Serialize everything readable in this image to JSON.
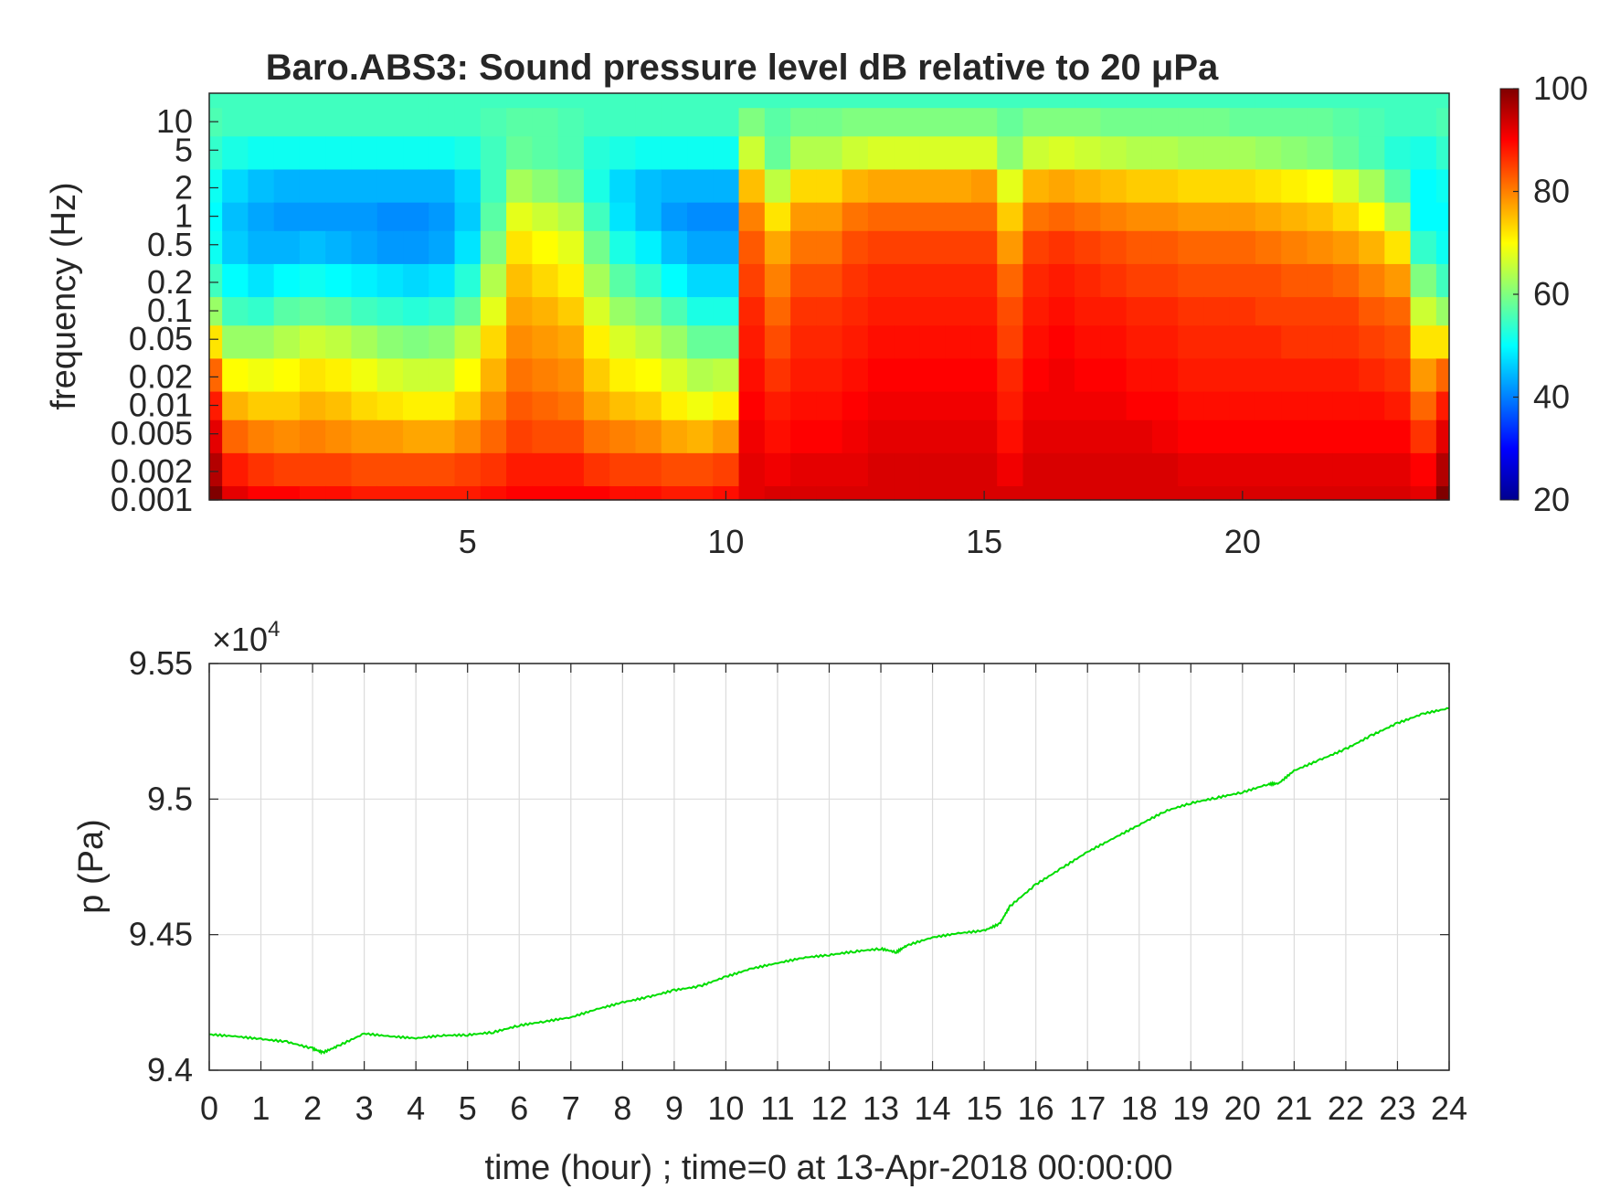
{
  "chart_data": [
    {
      "type": "heatmap",
      "title": "Baro.ABS3: Sound pressure level dB relative to 20 μPa",
      "xlabel": "",
      "ylabel": "frequency (Hz)",
      "x_ticks": [
        5,
        10,
        15,
        20
      ],
      "x_range": [
        0,
        24
      ],
      "y_scale": "log",
      "y_range": [
        0.001,
        20
      ],
      "y_ticks": [
        {
          "value": 0.001,
          "label": "0.001"
        },
        {
          "value": 0.002,
          "label": "0.002"
        },
        {
          "value": 0.005,
          "label": "0.005"
        },
        {
          "value": 0.01,
          "label": "0.01"
        },
        {
          "value": 0.02,
          "label": "0.02"
        },
        {
          "value": 0.05,
          "label": "0.05"
        },
        {
          "value": 0.1,
          "label": "0.1"
        },
        {
          "value": 0.2,
          "label": "0.2"
        },
        {
          "value": 0.5,
          "label": "0.5"
        },
        {
          "value": 1,
          "label": "1"
        },
        {
          "value": 2,
          "label": "2"
        },
        {
          "value": 5,
          "label": "5"
        },
        {
          "value": 10,
          "label": "10"
        }
      ],
      "colormap": "jet",
      "colorbar": {
        "range": [
          20,
          100
        ],
        "ticks": [
          20,
          40,
          60,
          80,
          100
        ]
      },
      "columns_hour": [
        0,
        0.5,
        1,
        1.5,
        2,
        2.5,
        3,
        3.5,
        4,
        4.5,
        5,
        5.5,
        6,
        6.5,
        7,
        7.5,
        8,
        8.5,
        9,
        9.5,
        10,
        10.5,
        11,
        11.5,
        12,
        12.5,
        13,
        13.5,
        14,
        14.5,
        15,
        15.5,
        16,
        16.5,
        17,
        17.5,
        18,
        18.5,
        19,
        19.5,
        20,
        20.5,
        21,
        21.5,
        22,
        22.5,
        23,
        23.5,
        24
      ],
      "rows_freq_hz": [
        0.001,
        0.002,
        0.005,
        0.01,
        0.02,
        0.05,
        0.1,
        0.2,
        0.5,
        1,
        2,
        5,
        10,
        20
      ],
      "values_db": [
        [
          100,
          92,
          90,
          90,
          89,
          89,
          88,
          88,
          88,
          88,
          88,
          89,
          90,
          90,
          90,
          90,
          89,
          89,
          88,
          88,
          89,
          92,
          93,
          93,
          93,
          93,
          93,
          93,
          93,
          93,
          93,
          93,
          93,
          93,
          93,
          93,
          93,
          93,
          93,
          93,
          93,
          93,
          93,
          93,
          93,
          93,
          93,
          92,
          100
        ],
        [
          96,
          88,
          86,
          85,
          85,
          85,
          84,
          84,
          84,
          84,
          85,
          86,
          88,
          88,
          88,
          86,
          85,
          85,
          84,
          84,
          85,
          92,
          91,
          92,
          92,
          92,
          93,
          93,
          93,
          93,
          93,
          91,
          93,
          93,
          93,
          93,
          93,
          93,
          92,
          92,
          92,
          92,
          92,
          92,
          92,
          92,
          92,
          90,
          96
        ],
        [
          92,
          82,
          80,
          79,
          80,
          79,
          78,
          78,
          77,
          77,
          79,
          82,
          85,
          84,
          84,
          81,
          80,
          79,
          77,
          76,
          78,
          91,
          89,
          90,
          90,
          91,
          92,
          92,
          92,
          92,
          92,
          89,
          92,
          92,
          92,
          92,
          92,
          91,
          90,
          90,
          90,
          90,
          90,
          90,
          90,
          90,
          90,
          86,
          92
        ],
        [
          88,
          76,
          74,
          74,
          76,
          75,
          73,
          72,
          71,
          71,
          74,
          79,
          83,
          82,
          81,
          77,
          75,
          74,
          71,
          69,
          71,
          90,
          88,
          89,
          89,
          90,
          91,
          91,
          91,
          91,
          91,
          88,
          91,
          91,
          91,
          91,
          90,
          90,
          89,
          89,
          89,
          89,
          89,
          89,
          89,
          89,
          88,
          82,
          88
        ],
        [
          82,
          70,
          69,
          70,
          72,
          71,
          69,
          67,
          66,
          66,
          70,
          76,
          81,
          80,
          79,
          74,
          71,
          70,
          67,
          64,
          65,
          89,
          86,
          88,
          88,
          89,
          90,
          90,
          90,
          90,
          90,
          87,
          90,
          91,
          90,
          90,
          89,
          89,
          88,
          88,
          88,
          88,
          88,
          88,
          88,
          87,
          86,
          78,
          82
        ],
        [
          72,
          62,
          62,
          64,
          66,
          65,
          63,
          61,
          60,
          61,
          65,
          73,
          79,
          78,
          77,
          71,
          67,
          65,
          62,
          58,
          58,
          88,
          84,
          87,
          87,
          88,
          89,
          89,
          89,
          89,
          89,
          85,
          89,
          90,
          89,
          89,
          88,
          88,
          87,
          87,
          87,
          87,
          86,
          86,
          86,
          85,
          84,
          72,
          72
        ],
        [
          62,
          55,
          54,
          57,
          58,
          57,
          55,
          54,
          53,
          54,
          58,
          68,
          77,
          76,
          74,
          67,
          62,
          60,
          56,
          52,
          52,
          87,
          82,
          86,
          86,
          87,
          88,
          88,
          88,
          88,
          88,
          84,
          88,
          89,
          88,
          88,
          87,
          87,
          86,
          86,
          86,
          85,
          85,
          85,
          85,
          83,
          82,
          66,
          62
        ],
        [
          55,
          50,
          48,
          50,
          51,
          50,
          49,
          48,
          47,
          48,
          53,
          64,
          75,
          73,
          71,
          63,
          57,
          54,
          50,
          47,
          47,
          85,
          80,
          84,
          84,
          86,
          87,
          87,
          87,
          87,
          87,
          82,
          87,
          88,
          87,
          86,
          85,
          85,
          84,
          84,
          84,
          84,
          83,
          83,
          82,
          80,
          78,
          60,
          55
        ],
        [
          51,
          46,
          44,
          44,
          45,
          44,
          43,
          42,
          42,
          43,
          48,
          60,
          72,
          70,
          68,
          59,
          52,
          49,
          45,
          43,
          43,
          83,
          77,
          81,
          81,
          84,
          85,
          85,
          85,
          85,
          85,
          78,
          85,
          86,
          85,
          84,
          83,
          83,
          82,
          82,
          82,
          81,
          80,
          79,
          78,
          76,
          72,
          54,
          51
        ],
        [
          50,
          45,
          43,
          42,
          42,
          42,
          42,
          41,
          41,
          42,
          46,
          57,
          68,
          66,
          64,
          55,
          48,
          45,
          42,
          41,
          41,
          80,
          72,
          78,
          78,
          81,
          82,
          82,
          82,
          82,
          82,
          74,
          81,
          82,
          81,
          80,
          79,
          79,
          78,
          78,
          78,
          77,
          76,
          75,
          73,
          70,
          64,
          50,
          50
        ],
        [
          51,
          47,
          45,
          44,
          44,
          44,
          44,
          44,
          44,
          44,
          47,
          55,
          63,
          61,
          59,
          52,
          47,
          45,
          44,
          44,
          44,
          75,
          65,
          73,
          73,
          76,
          77,
          77,
          77,
          77,
          78,
          68,
          76,
          77,
          76,
          75,
          74,
          74,
          73,
          73,
          73,
          72,
          71,
          70,
          67,
          63,
          57,
          50,
          51
        ],
        [
          54,
          52,
          51,
          51,
          51,
          51,
          51,
          51,
          51,
          51,
          52,
          55,
          58,
          57,
          56,
          53,
          52,
          51,
          51,
          51,
          51,
          66,
          58,
          64,
          64,
          66,
          67,
          67,
          67,
          67,
          67,
          61,
          66,
          67,
          66,
          65,
          64,
          64,
          63,
          63,
          63,
          62,
          61,
          60,
          58,
          56,
          53,
          52,
          54
        ],
        [
          56,
          55,
          55,
          55,
          55,
          55,
          55,
          55,
          55,
          55,
          55,
          56,
          57,
          57,
          56,
          55,
          55,
          55,
          55,
          55,
          55,
          60,
          57,
          59,
          59,
          60,
          60,
          60,
          60,
          60,
          60,
          58,
          60,
          60,
          60,
          59,
          59,
          59,
          59,
          59,
          58,
          58,
          58,
          58,
          57,
          56,
          55,
          55,
          56
        ],
        [
          55,
          55,
          55,
          55,
          55,
          55,
          55,
          55,
          55,
          55,
          55,
          55,
          55,
          55,
          55,
          55,
          55,
          55,
          55,
          55,
          55,
          55,
          55,
          55,
          55,
          55,
          55,
          55,
          55,
          55,
          55,
          55,
          55,
          55,
          55,
          55,
          55,
          55,
          55,
          55,
          55,
          55,
          55,
          55,
          55,
          55,
          55,
          55,
          55
        ]
      ]
    },
    {
      "type": "line",
      "title": "",
      "xlabel": "time (hour) ; time=0 at 13-Apr-2018 00:00:00",
      "ylabel": "p (Pa)",
      "y_multiplier": "×10",
      "y_multiplier_exp": "4",
      "xlim": [
        0,
        24
      ],
      "ylim": [
        9.4,
        9.55
      ],
      "x_ticks": [
        0,
        1,
        2,
        3,
        4,
        5,
        6,
        7,
        8,
        9,
        10,
        11,
        12,
        13,
        14,
        15,
        16,
        17,
        18,
        19,
        20,
        21,
        22,
        23,
        24
      ],
      "y_ticks": [
        {
          "value": 9.4,
          "label": "9.4"
        },
        {
          "value": 9.45,
          "label": "9.45"
        },
        {
          "value": 9.5,
          "label": "9.5"
        },
        {
          "value": 9.55,
          "label": "9.55"
        }
      ],
      "grid": true,
      "line_color": "#00dd00",
      "series": [
        {
          "name": "",
          "x": [
            0,
            0.5,
            1,
            1.5,
            2,
            2.2,
            2.5,
            3,
            3.5,
            4,
            4.5,
            5,
            5.5,
            6,
            6.5,
            7,
            7.5,
            8,
            8.5,
            9,
            9.5,
            10,
            10.5,
            11,
            11.5,
            12,
            12.5,
            13,
            13.3,
            13.5,
            14,
            14.5,
            15,
            15.3,
            15.5,
            16,
            16.5,
            17,
            17.5,
            18,
            18.5,
            19,
            19.5,
            20,
            20.5,
            20.7,
            21,
            21.5,
            22,
            22.5,
            23,
            23.5,
            24
          ],
          "y": [
            9.4132,
            9.4125,
            9.4115,
            9.4105,
            9.408,
            9.4065,
            9.409,
            9.4135,
            9.4125,
            9.4118,
            9.4128,
            9.413,
            9.414,
            9.4165,
            9.418,
            9.4195,
            9.4225,
            9.425,
            9.427,
            9.4295,
            9.431,
            9.4345,
            9.4375,
            9.4395,
            9.4415,
            9.4425,
            9.4438,
            9.4448,
            9.4435,
            9.446,
            9.449,
            9.4505,
            9.4515,
            9.454,
            9.4605,
            9.4685,
            9.4745,
            9.4805,
            9.4855,
            9.4905,
            9.4955,
            9.4985,
            9.5005,
            9.5025,
            9.5055,
            9.5058,
            9.5105,
            9.5145,
            9.5185,
            9.5235,
            9.528,
            9.5315,
            9.5335
          ]
        }
      ]
    }
  ]
}
